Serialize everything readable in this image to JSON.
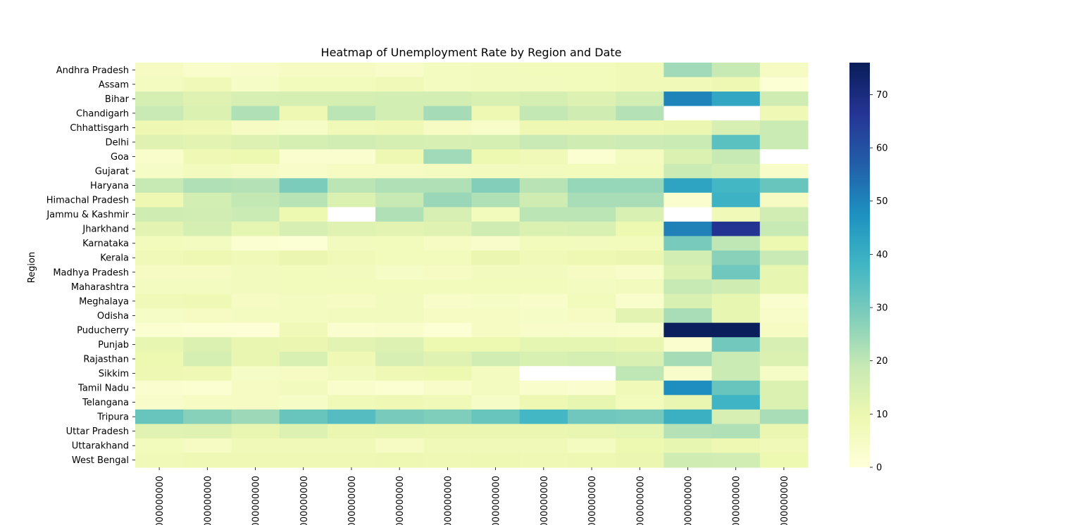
{
  "chart_data": {
    "type": "heatmap",
    "title": "Heatmap of Unemployment Rate by Region and Date",
    "ylabel": "Region",
    "xlabel": "",
    "rows": [
      "Andhra Pradesh",
      "Assam",
      "Bihar",
      "Chandigarh",
      "Chhattisgarh",
      "Delhi",
      "Goa",
      "Gujarat",
      "Haryana",
      "Himachal Pradesh",
      "Jammu & Kashmir",
      "Jharkhand",
      "Karnataka",
      "Kerala",
      "Madhya Pradesh",
      "Maharashtra",
      "Meghalaya",
      "Odisha",
      "Puducherry",
      "Punjab",
      "Rajasthan",
      "Sikkim",
      "Tamil Nadu",
      "Telangana",
      "Tripura",
      "Uttar Pradesh",
      "Uttarakhand",
      "West Bengal"
    ],
    "columns": [
      "000000000",
      "000000000",
      "000000000",
      "000000000",
      "000000000",
      "000000000",
      "000000000",
      "000000000",
      "000000000",
      "000000000",
      "000000000",
      "000000000",
      "000000000",
      "000000000"
    ],
    "values": [
      [
        5.5,
        3.3,
        4.0,
        5.0,
        5.5,
        4.0,
        6.0,
        6.5,
        7.0,
        7.0,
        8.0,
        24.0,
        19.0,
        5.5
      ],
      [
        6.0,
        7.5,
        4.5,
        7.0,
        7.0,
        7.5,
        6.0,
        6.5,
        6.5,
        7.0,
        7.5,
        7.5,
        9.0,
        1.5
      ],
      [
        15.5,
        13.0,
        15.0,
        15.5,
        15.5,
        16.0,
        16.0,
        14.5,
        15.5,
        13.5,
        16.0,
        50.0,
        42.0,
        17.0
      ],
      [
        18.5,
        14.0,
        22.0,
        9.0,
        20.5,
        16.0,
        23.5,
        9.0,
        19.5,
        17.0,
        21.5,
        null,
        null,
        8.5
      ],
      [
        9.0,
        8.5,
        5.5,
        4.5,
        8.0,
        8.5,
        5.5,
        4.0,
        9.0,
        9.0,
        9.0,
        10.0,
        15.0,
        18.0
      ],
      [
        13.0,
        12.0,
        13.5,
        15.5,
        16.5,
        15.5,
        15.0,
        15.5,
        18.5,
        17.0,
        17.5,
        18.0,
        34.0,
        18.0
      ],
      [
        3.0,
        8.5,
        9.5,
        2.5,
        2.5,
        9.0,
        24.0,
        9.5,
        8.0,
        2.0,
        6.0,
        14.0,
        19.0,
        null
      ],
      [
        4.5,
        6.5,
        5.5,
        4.0,
        5.5,
        5.0,
        6.0,
        6.5,
        6.5,
        7.0,
        7.0,
        18.0,
        16.0,
        4.0
      ],
      [
        19.0,
        22.0,
        21.5,
        29.0,
        20.5,
        22.0,
        22.0,
        28.0,
        21.0,
        25.5,
        25.5,
        43.0,
        37.5,
        32.0
      ],
      [
        9.0,
        16.0,
        19.5,
        21.0,
        14.0,
        19.0,
        25.0,
        22.0,
        17.0,
        23.0,
        23.0,
        2.5,
        39.0,
        5.5
      ],
      [
        17.0,
        16.5,
        18.0,
        9.5,
        null,
        22.0,
        15.0,
        7.0,
        20.5,
        20.5,
        14.5,
        null,
        7.5,
        16.5
      ],
      [
        12.0,
        15.5,
        11.5,
        15.0,
        13.0,
        12.0,
        13.0,
        17.0,
        14.0,
        14.5,
        9.5,
        50.5,
        67.0,
        19.0
      ],
      [
        7.0,
        6.0,
        2.0,
        1.5,
        6.5,
        7.0,
        5.0,
        3.5,
        7.0,
        6.5,
        7.0,
        29.5,
        20.0,
        9.5
      ],
      [
        7.5,
        9.0,
        7.5,
        10.0,
        7.5,
        7.0,
        7.0,
        10.0,
        7.5,
        9.0,
        10.0,
        16.0,
        27.0,
        18.5
      ],
      [
        5.0,
        5.5,
        6.5,
        7.0,
        6.5,
        4.5,
        5.5,
        6.5,
        6.5,
        5.5,
        4.0,
        14.0,
        31.0,
        11.0
      ],
      [
        6.0,
        6.0,
        6.5,
        7.0,
        7.0,
        7.0,
        7.0,
        7.0,
        7.0,
        6.0,
        6.5,
        19.0,
        17.0,
        11.0
      ],
      [
        8.0,
        8.5,
        5.5,
        6.0,
        5.0,
        6.5,
        4.0,
        4.5,
        4.0,
        7.0,
        3.0,
        14.5,
        11.0,
        2.5
      ],
      [
        4.5,
        5.0,
        6.0,
        6.0,
        6.5,
        6.5,
        5.5,
        5.5,
        4.5,
        5.0,
        12.0,
        23.0,
        11.0,
        4.0
      ],
      [
        2.0,
        1.5,
        1.0,
        8.0,
        2.5,
        3.0,
        1.5,
        5.0,
        4.0,
        3.5,
        3.0,
        75.0,
        75.5,
        5.0
      ],
      [
        11.0,
        14.0,
        10.5,
        10.0,
        12.0,
        13.5,
        9.5,
        9.5,
        11.5,
        11.5,
        10.5,
        2.5,
        30.5,
        15.0
      ],
      [
        9.5,
        15.5,
        10.5,
        14.5,
        8.5,
        15.0,
        13.0,
        16.5,
        14.5,
        15.5,
        14.5,
        23.5,
        18.0,
        14.0
      ],
      [
        9.0,
        8.5,
        4.5,
        5.0,
        6.5,
        8.5,
        9.5,
        6.0,
        null,
        null,
        20.0,
        3.5,
        18.0,
        4.5
      ],
      [
        2.5,
        2.0,
        5.0,
        6.5,
        3.0,
        2.0,
        4.0,
        6.0,
        3.0,
        2.5,
        8.0,
        48.0,
        32.0,
        14.0
      ],
      [
        3.5,
        5.0,
        5.5,
        4.5,
        7.5,
        8.5,
        8.0,
        4.5,
        9.0,
        11.0,
        7.0,
        10.5,
        38.5,
        14.0
      ],
      [
        32.0,
        27.5,
        24.5,
        32.0,
        35.0,
        29.5,
        28.5,
        32.0,
        37.5,
        31.0,
        30.0,
        39.5,
        15.0,
        23.0
      ],
      [
        12.5,
        13.0,
        10.5,
        13.5,
        10.0,
        10.5,
        10.0,
        10.0,
        10.0,
        10.5,
        11.5,
        21.5,
        22.0,
        10.0
      ],
      [
        7.0,
        5.5,
        8.0,
        8.0,
        7.5,
        5.5,
        7.5,
        7.5,
        7.5,
        6.0,
        9.5,
        11.0,
        9.0,
        8.0
      ],
      [
        8.0,
        8.5,
        8.5,
        8.5,
        8.5,
        9.0,
        8.5,
        9.0,
        8.5,
        9.0,
        10.0,
        17.0,
        16.5,
        9.5
      ]
    ],
    "colorbar": {
      "min": 0,
      "max": 76,
      "ticks": [
        0,
        10,
        20,
        30,
        40,
        50,
        60,
        70
      ],
      "colormap": "YlGnBu"
    },
    "colormap_stops": [
      "#ffffd9",
      "#edf8b1",
      "#c7e9b4",
      "#7fcdbb",
      "#41b6c4",
      "#1d91c0",
      "#225ea8",
      "#253494",
      "#081d58"
    ],
    "missing_color": "#ffffff"
  }
}
